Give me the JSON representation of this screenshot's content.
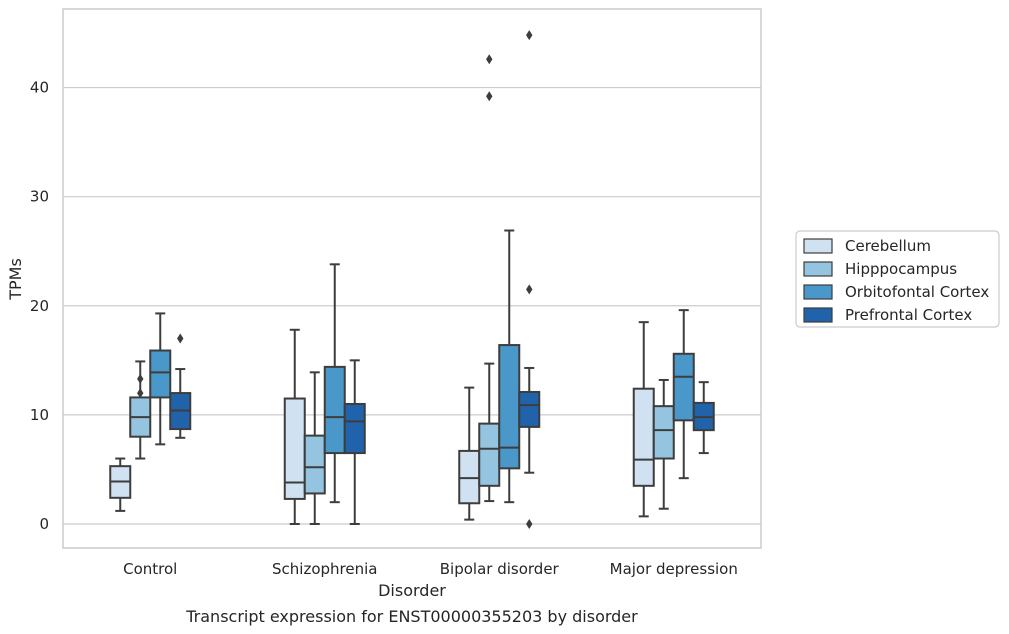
{
  "chart_data": {
    "type": "box",
    "title": "",
    "caption": "Transcript expression for ENST00000355203 by disorder",
    "xlabel": "Disorder",
    "ylabel": "TPMs",
    "ylim": [
      -2.2,
      47.2
    ],
    "yticks": [
      0,
      10,
      20,
      30,
      40
    ],
    "grid": "horizontal",
    "legend_position": "right",
    "categories": [
      "Control",
      "Schizophrenia",
      "Bipolar disorder",
      "Major depression"
    ],
    "series": [
      {
        "name": "Cerebellum",
        "color": "#d0e1f2",
        "boxes": [
          {
            "whislo": 1.2,
            "q1": 2.4,
            "med": 3.9,
            "q3": 5.3,
            "whishi": 6.0,
            "fliers": []
          },
          {
            "whislo": 0.0,
            "q1": 2.3,
            "med": 3.8,
            "q3": 11.5,
            "whishi": 17.8,
            "fliers": []
          },
          {
            "whislo": 0.4,
            "q1": 1.9,
            "med": 4.2,
            "q3": 6.7,
            "whishi": 12.5,
            "fliers": []
          },
          {
            "whislo": 0.7,
            "q1": 3.5,
            "med": 5.9,
            "q3": 12.4,
            "whishi": 18.5,
            "fliers": []
          }
        ]
      },
      {
        "name": "Hipppocampus",
        "color": "#94c4df",
        "boxes": [
          {
            "whislo": 6.0,
            "q1": 8.0,
            "med": 9.8,
            "q3": 11.6,
            "whishi": 14.9,
            "fliers": [
              12.0,
              13.3
            ]
          },
          {
            "whislo": 0.0,
            "q1": 2.8,
            "med": 5.2,
            "q3": 8.1,
            "whishi": 13.9,
            "fliers": []
          },
          {
            "whislo": 2.1,
            "q1": 3.5,
            "med": 6.9,
            "q3": 9.2,
            "whishi": 14.7,
            "fliers": [
              39.2,
              42.6
            ]
          },
          {
            "whislo": 1.4,
            "q1": 6.0,
            "med": 8.6,
            "q3": 10.8,
            "whishi": 13.2,
            "fliers": []
          }
        ]
      },
      {
        "name": "Orbitofontal Cortex",
        "color": "#4a98c9",
        "boxes": [
          {
            "whislo": 7.3,
            "q1": 11.6,
            "med": 13.9,
            "q3": 15.9,
            "whishi": 19.3,
            "fliers": []
          },
          {
            "whislo": 2.0,
            "q1": 6.5,
            "med": 9.8,
            "q3": 14.4,
            "whishi": 23.8,
            "fliers": []
          },
          {
            "whislo": 2.0,
            "q1": 5.1,
            "med": 7.0,
            "q3": 16.4,
            "whishi": 26.9,
            "fliers": []
          },
          {
            "whislo": 4.2,
            "q1": 9.5,
            "med": 13.5,
            "q3": 15.6,
            "whishi": 19.6,
            "fliers": []
          }
        ]
      },
      {
        "name": "Prefrontal Cortex",
        "color": "#2163aa",
        "boxes": [
          {
            "whislo": 7.9,
            "q1": 8.7,
            "med": 10.4,
            "q3": 12.0,
            "whishi": 14.2,
            "fliers": [
              17.0
            ]
          },
          {
            "whislo": 0.0,
            "q1": 6.5,
            "med": 9.4,
            "q3": 11.0,
            "whishi": 15.0,
            "fliers": []
          },
          {
            "whislo": 4.7,
            "q1": 8.9,
            "med": 10.9,
            "q3": 12.1,
            "whishi": 14.3,
            "fliers": [
              0.0,
              21.5,
              44.8
            ]
          },
          {
            "whislo": 6.5,
            "q1": 8.6,
            "med": 9.8,
            "q3": 11.1,
            "whishi": 13.0,
            "fliers": []
          }
        ]
      }
    ]
  }
}
